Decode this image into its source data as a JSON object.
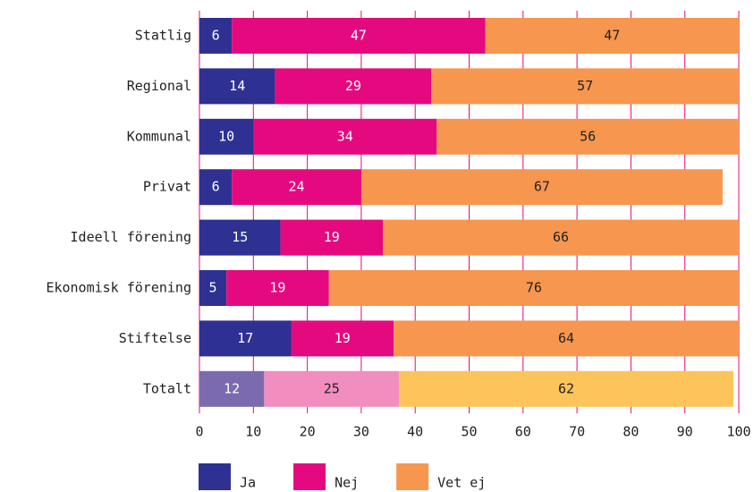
{
  "chart_data": {
    "type": "stacked_bar_horizontal",
    "categories": [
      "Statlig",
      "Regional",
      "Kommunal",
      "Privat",
      "Ideell förening",
      "Ekonomisk förening",
      "Stiftelse",
      "Totalt"
    ],
    "series": [
      {
        "name": "Ja",
        "color": "#2e3192",
        "colors": [
          "#2e3192",
          "#2e3192",
          "#2e3192",
          "#2e3192",
          "#2e3192",
          "#2e3192",
          "#2e3192",
          "#7b6bae"
        ],
        "values": [
          6,
          14,
          10,
          6,
          15,
          5,
          17,
          12
        ]
      },
      {
        "name": "Nej",
        "color": "#e5097f",
        "colors": [
          "#e5097f",
          "#e5097f",
          "#e5097f",
          "#e5097f",
          "#e5097f",
          "#e5097f",
          "#e5097f",
          "#f28dc0"
        ],
        "values": [
          47,
          29,
          34,
          24,
          19,
          19,
          19,
          25
        ]
      },
      {
        "name": "Vet ej",
        "color": "#f7964f",
        "colors": [
          "#f7964f",
          "#f7964f",
          "#f7964f",
          "#f7964f",
          "#f7964f",
          "#f7964f",
          "#f7964f",
          "#fdc45b"
        ],
        "values": [
          47,
          57,
          56,
          67,
          66,
          76,
          64,
          62
        ]
      }
    ],
    "xlim": [
      0,
      100
    ],
    "xticks": [
      0,
      10,
      20,
      30,
      40,
      50,
      60,
      70,
      80,
      90,
      100
    ],
    "grid": true
  }
}
